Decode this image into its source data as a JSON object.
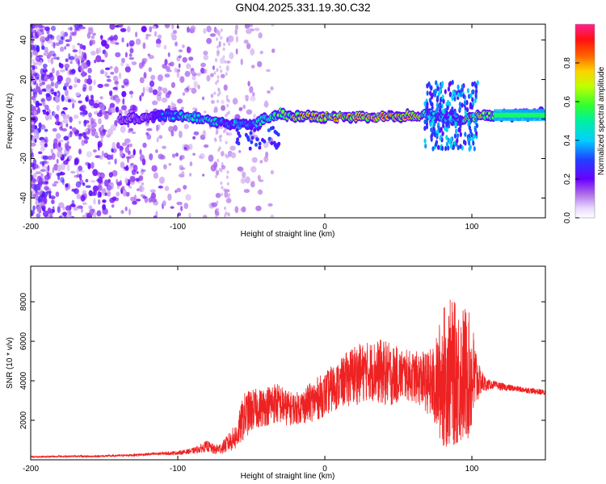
{
  "figure": {
    "title": "GN04.2025.331.19.30.C32"
  },
  "chart_data": [
    {
      "type": "heatmap",
      "panel": "spectrogram",
      "xlabel": "Height of straight line (km)",
      "ylabel": "Frequency (Hz)",
      "xlim": [
        -200,
        150
      ],
      "ylim": [
        -50,
        48
      ],
      "xticks": [
        -200,
        -100,
        0,
        100
      ],
      "xtick_labels": [
        "-200",
        "-100",
        "0",
        "100"
      ],
      "yticks": [
        -40,
        -20,
        0,
        20,
        40
      ],
      "ytick_labels": [
        "-40",
        "-20",
        "0",
        "20",
        "40"
      ],
      "colorbar": {
        "label": "Normalized spectral amplitude",
        "range": [
          0,
          1
        ],
        "ticks": [
          0.0,
          0.2,
          0.4,
          0.6,
          0.8
        ],
        "tick_labels": [
          "0.0",
          "0.2",
          "0.4",
          "0.6",
          "0.8"
        ],
        "colormap": [
          "#ffffff",
          "#b070e8",
          "#6a00ff",
          "#2040ff",
          "#00d0ff",
          "#00f0a0",
          "#30ff30",
          "#c0ff00",
          "#ffd000",
          "#ff6000",
          "#ff1010",
          "#ff2090"
        ]
      },
      "description_trace": {
        "x": [
          -200,
          -150,
          -120,
          -110,
          -90,
          -70,
          -50,
          -40,
          -30,
          -20,
          0,
          20,
          40,
          60,
          70,
          80,
          90,
          100,
          110,
          130,
          150
        ],
        "freq_center": [
          0,
          0,
          0,
          2,
          1,
          -2,
          -3,
          0,
          3,
          1,
          1,
          1,
          1,
          2,
          2,
          1,
          0,
          1,
          2,
          2,
          3
        ],
        "amplitude": [
          0.1,
          0.1,
          0.15,
          0.35,
          0.5,
          0.45,
          0.4,
          0.55,
          0.6,
          0.8,
          0.85,
          0.9,
          0.9,
          0.9,
          0.5,
          0.45,
          0.4,
          0.9,
          0.7,
          0.4,
          0.4
        ]
      }
    },
    {
      "type": "line",
      "panel": "snr",
      "xlabel": "Height of straight line (km)",
      "ylabel": "SNR (10 * v/v)",
      "xlim": [
        -200,
        150
      ],
      "ylim": [
        0,
        9800
      ],
      "xticks": [
        -200,
        -100,
        0,
        100
      ],
      "xtick_labels": [
        "-200",
        "-100",
        "0",
        "100"
      ],
      "yticks": [
        2000,
        4000,
        6000,
        8000
      ],
      "ytick_labels": [
        "2000",
        "4000",
        "6000",
        "8000"
      ],
      "series": [
        {
          "name": "SNR",
          "color": "#ee2222",
          "x": [
            -200,
            -190,
            -180,
            -170,
            -160,
            -150,
            -140,
            -130,
            -120,
            -110,
            -100,
            -95,
            -90,
            -85,
            -80,
            -75,
            -70,
            -65,
            -60,
            -55,
            -50,
            -45,
            -40,
            -35,
            -30,
            -25,
            -20,
            -15,
            -10,
            -5,
            0,
            5,
            10,
            15,
            20,
            25,
            30,
            35,
            40,
            45,
            50,
            55,
            60,
            65,
            70,
            75,
            80,
            85,
            90,
            95,
            100,
            105,
            110,
            115,
            120,
            130,
            140,
            150
          ],
          "values": [
            150,
            160,
            170,
            180,
            170,
            190,
            210,
            240,
            280,
            320,
            350,
            400,
            450,
            550,
            700,
            500,
            600,
            900,
            1200,
            2200,
            2500,
            2600,
            2700,
            2900,
            2800,
            2600,
            2600,
            2700,
            2900,
            3100,
            3300,
            3600,
            3800,
            4100,
            4300,
            4400,
            4500,
            4500,
            4400,
            4300,
            4300,
            4300,
            4200,
            4100,
            3900,
            3700,
            4200,
            4400,
            4300,
            4300,
            4200,
            4000,
            3800,
            3800,
            3700,
            3600,
            3500,
            3400
          ],
          "noise": [
            40,
            40,
            40,
            40,
            40,
            50,
            50,
            60,
            70,
            80,
            100,
            120,
            150,
            200,
            300,
            250,
            300,
            500,
            700,
            1200,
            1100,
            1000,
            1000,
            1100,
            1000,
            900,
            800,
            900,
            1000,
            1100,
            1100,
            1200,
            1200,
            1400,
            1600,
            1500,
            1500,
            1600,
            1700,
            1600,
            1400,
            1300,
            1300,
            1400,
            1600,
            2200,
            3600,
            3800,
            3600,
            3600,
            3000,
            800,
            300,
            200,
            200,
            150,
            150,
            150
          ]
        }
      ]
    }
  ]
}
